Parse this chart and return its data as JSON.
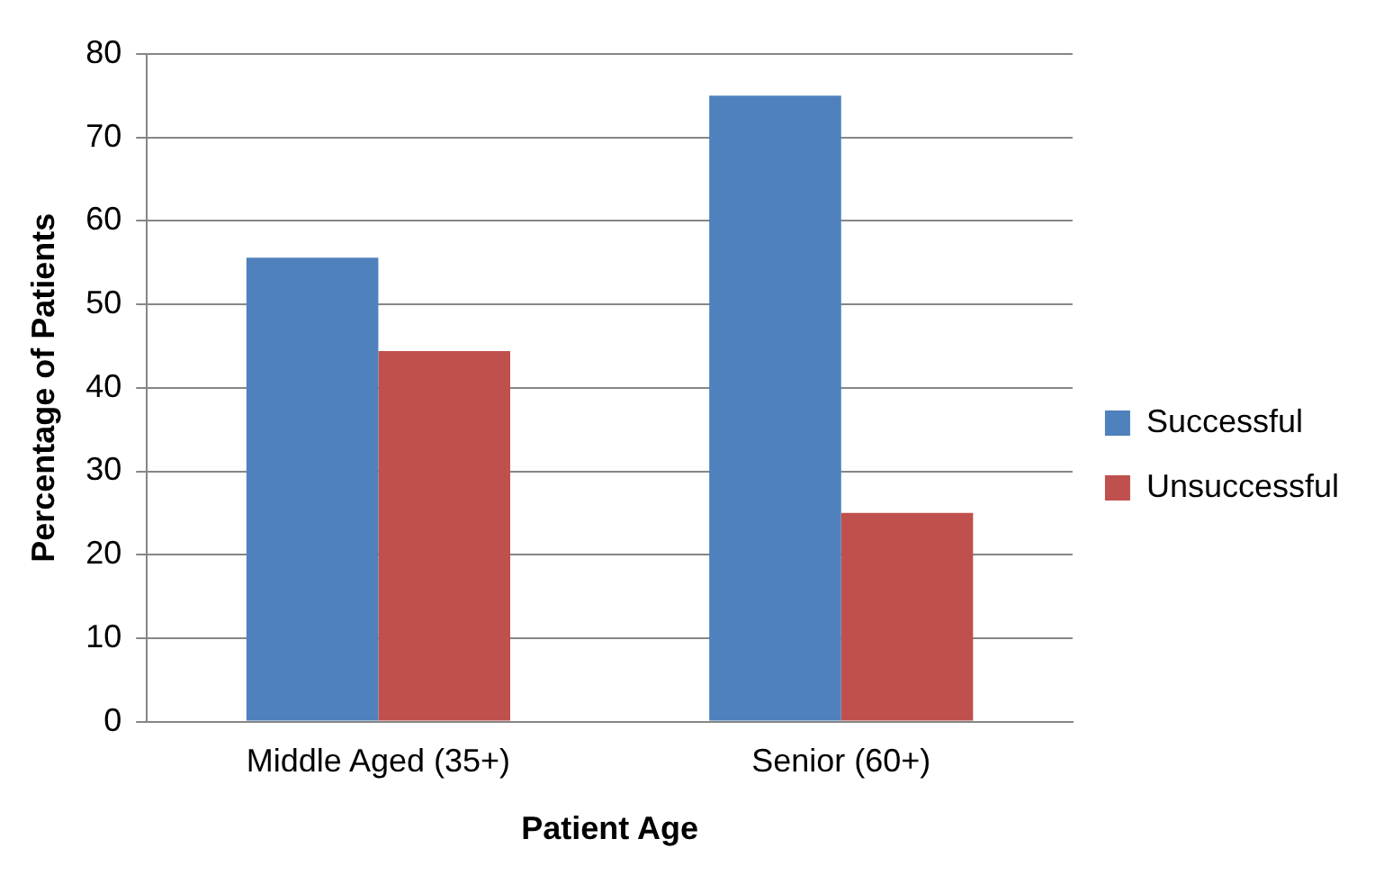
{
  "chart_data": {
    "type": "bar",
    "xlabel": "Patient Age",
    "ylabel": "Percentage of Patients",
    "categories": [
      "Middle Aged (35+)",
      "Senior (60+)"
    ],
    "series": [
      {
        "name": "Successful",
        "color": "#4f81bd",
        "values": [
          55.6,
          75
        ]
      },
      {
        "name": "Unsuccessful",
        "color": "#c0504d",
        "values": [
          44.4,
          25
        ]
      }
    ],
    "ylim": [
      0,
      80
    ],
    "yticks": [
      0,
      10,
      20,
      30,
      40,
      50,
      60,
      70,
      80
    ],
    "grid": "y",
    "legend": "right"
  }
}
